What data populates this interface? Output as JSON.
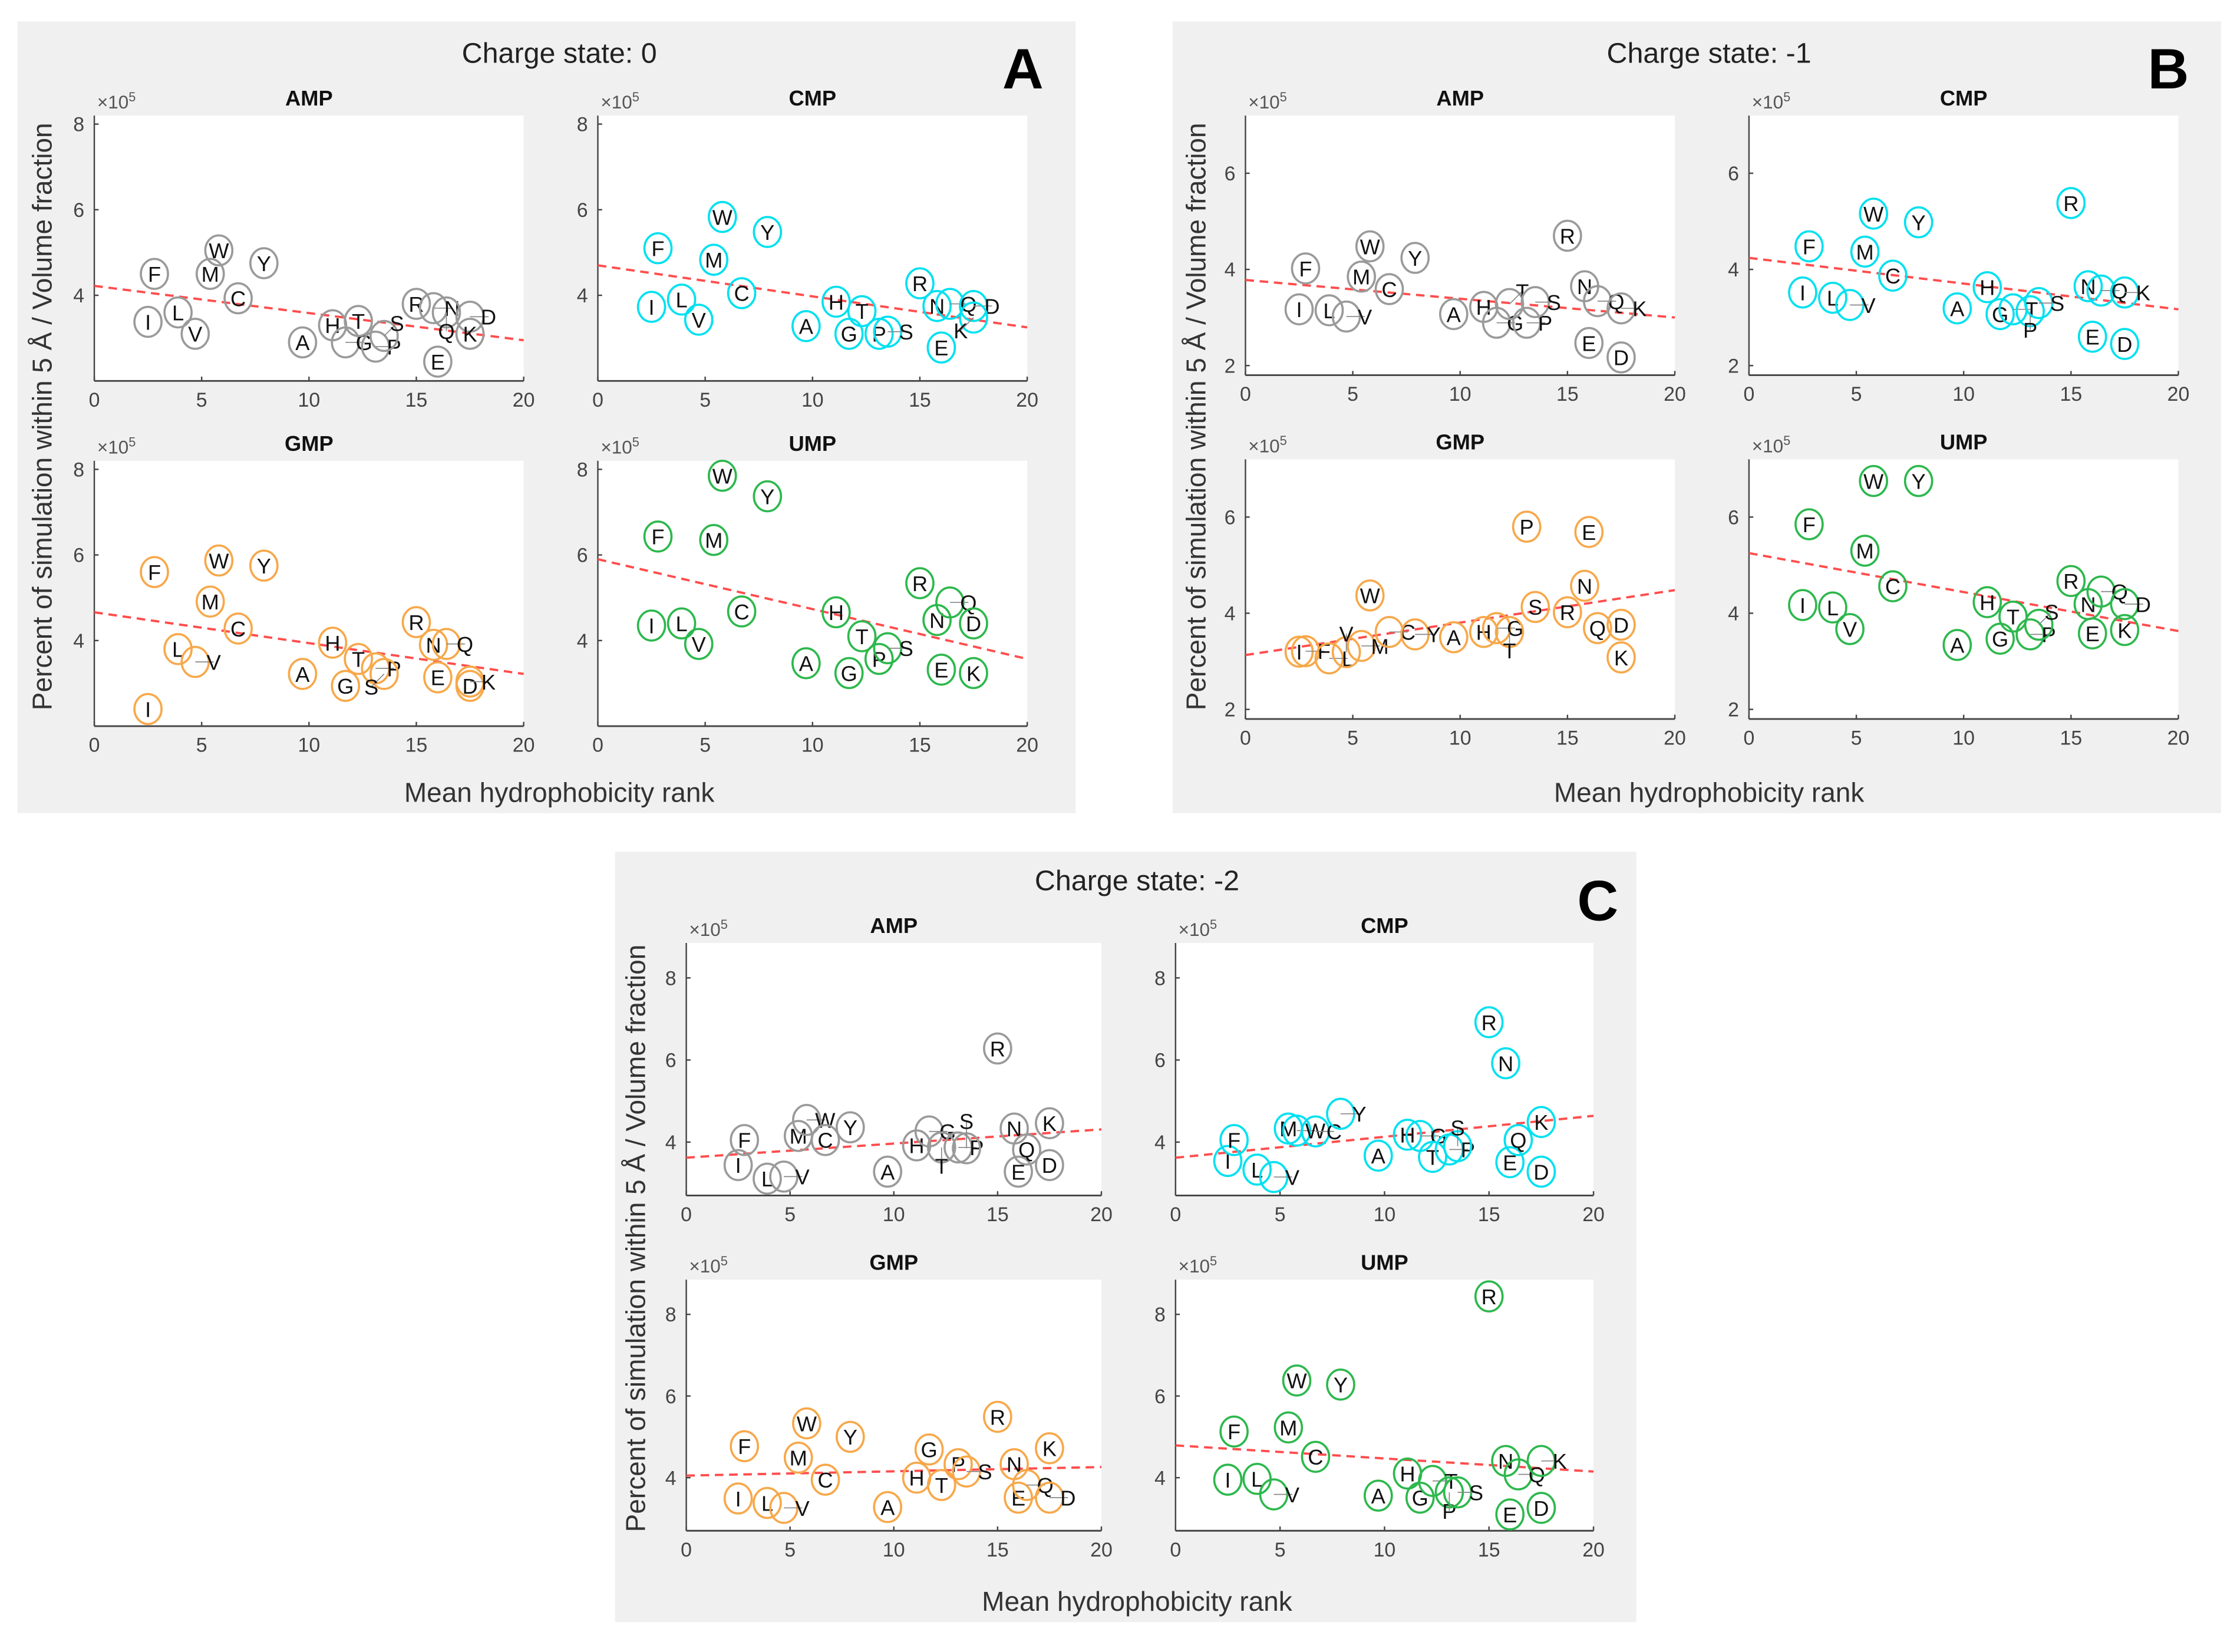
{
  "colors": {
    "AMP": "#9a9a9a",
    "CMP": "#00e0f0",
    "GMP": "#f7a84a",
    "UMP": "#2db84d",
    "trend": "#ff4d4d",
    "panel_bg": "#f0f0f0"
  },
  "panels": [
    {
      "letter": "A",
      "title": "Charge state: 0",
      "ylabel": "Percent of simulation within 5 Å / Volume fraction",
      "xlabel": "Mean hydrophobicity rank"
    },
    {
      "letter": "B",
      "title": "Charge state: -1",
      "ylabel": "Percent of simulation within 5 Å / Volume fraction",
      "xlabel": "Mean hydrophobicity rank"
    },
    {
      "letter": "C",
      "title": "Charge state: -2",
      "ylabel": "Percent of simulation within 5 Å / Volume fraction",
      "xlabel": "Mean hydrophobicity rank"
    }
  ],
  "amino_acids": [
    "I",
    "F",
    "L",
    "V",
    "M",
    "W",
    "C",
    "Y",
    "A",
    "H",
    "G",
    "T",
    "P",
    "S",
    "R",
    "N",
    "E",
    "Q",
    "D",
    "K"
  ],
  "hydrophobicity_rank": [
    2.5,
    2.8,
    3.9,
    4.7,
    5.4,
    5.8,
    6.7,
    7.9,
    9.7,
    11.1,
    11.7,
    12.3,
    13.1,
    13.5,
    15.0,
    15.8,
    16.0,
    16.4,
    17.5,
    17.5
  ],
  "chart_data": [
    {
      "type": "scatter",
      "panel": "A",
      "title": "AMP",
      "y_multiplier": "×10",
      "y_exponent": "5",
      "xlim": [
        0,
        20
      ],
      "ylim": [
        2,
        8.2
      ],
      "xticks": [
        "0",
        "5",
        "10",
        "15",
        "20"
      ],
      "yticks": [
        "4",
        "6",
        "8"
      ],
      "ytick_values": [
        4,
        6,
        8
      ],
      "y": [
        3.38,
        4.5,
        3.6,
        3.1,
        4.5,
        5.05,
        3.93,
        4.75,
        2.9,
        3.3,
        2.9,
        3.4,
        2.8,
        3.05,
        3.8,
        3.7,
        2.45,
        3.6,
        3.5,
        3.1
      ],
      "trend": {
        "x": [
          0,
          20
        ],
        "y": [
          4.22,
          2.95
        ]
      }
    },
    {
      "type": "scatter",
      "panel": "A",
      "title": "CMP",
      "y_multiplier": "×10",
      "y_exponent": "5",
      "xlim": [
        0,
        20
      ],
      "ylim": [
        2,
        8.2
      ],
      "xticks": [
        "0",
        "5",
        "10",
        "15",
        "20"
      ],
      "yticks": [
        "4",
        "6",
        "8"
      ],
      "ytick_values": [
        4,
        6,
        8
      ],
      "y": [
        3.73,
        5.1,
        3.9,
        3.43,
        4.83,
        5.83,
        4.05,
        5.48,
        3.28,
        3.85,
        3.1,
        3.63,
        3.1,
        3.15,
        4.28,
        3.75,
        2.78,
        3.8,
        3.75,
        3.48
      ],
      "trend": {
        "x": [
          0,
          20
        ],
        "y": [
          4.7,
          3.25
        ]
      }
    },
    {
      "type": "scatter",
      "panel": "A",
      "title": "GMP",
      "y_multiplier": "×10",
      "y_exponent": "5",
      "xlim": [
        0,
        20
      ],
      "ylim": [
        2,
        8.2
      ],
      "xticks": [
        "0",
        "5",
        "10",
        "15",
        "20"
      ],
      "yticks": [
        "4",
        "6",
        "8"
      ],
      "ytick_values": [
        4,
        6,
        8
      ],
      "y": [
        2.4,
        5.6,
        3.8,
        3.5,
        4.91,
        5.87,
        4.28,
        5.75,
        3.22,
        3.95,
        2.94,
        3.57,
        3.35,
        3.22,
        4.43,
        3.9,
        3.14,
        3.92,
        2.94,
        3.04
      ],
      "trend": {
        "x": [
          0,
          20
        ],
        "y": [
          4.66,
          3.22
        ]
      }
    },
    {
      "type": "scatter",
      "panel": "A",
      "title": "UMP",
      "y_multiplier": "×10",
      "y_exponent": "5",
      "xlim": [
        0,
        20
      ],
      "ylim": [
        2,
        8.2
      ],
      "xticks": [
        "0",
        "5",
        "10",
        "15",
        "20"
      ],
      "yticks": [
        "4",
        "6",
        "8"
      ],
      "ytick_values": [
        4,
        6,
        8
      ],
      "y": [
        4.35,
        6.43,
        4.4,
        3.92,
        6.35,
        7.85,
        4.68,
        7.37,
        3.47,
        4.66,
        3.24,
        4.1,
        3.57,
        3.82,
        5.34,
        4.48,
        3.32,
        4.89,
        4.4,
        3.24
      ],
      "trend": {
        "x": [
          0,
          20
        ],
        "y": [
          5.9,
          3.57
        ]
      }
    },
    {
      "type": "scatter",
      "panel": "B",
      "title": "AMP",
      "y_multiplier": "×10",
      "y_exponent": "5",
      "xlim": [
        0,
        20
      ],
      "ylim": [
        1.8,
        7.2
      ],
      "xticks": [
        "0",
        "5",
        "10",
        "15",
        "20"
      ],
      "yticks": [
        "2",
        "4",
        "6"
      ],
      "ytick_values": [
        2,
        4,
        6
      ],
      "y": [
        3.17,
        4.02,
        3.15,
        3.02,
        3.85,
        4.48,
        3.59,
        4.24,
        3.07,
        3.22,
        2.89,
        3.28,
        2.89,
        3.32,
        4.7,
        3.65,
        2.47,
        3.34,
        2.17,
        3.19
      ],
      "trend": {
        "x": [
          0,
          20
        ],
        "y": [
          3.78,
          3.0
        ]
      }
    },
    {
      "type": "scatter",
      "panel": "B",
      "title": "CMP",
      "y_multiplier": "×10",
      "y_exponent": "5",
      "xlim": [
        0,
        20
      ],
      "ylim": [
        1.8,
        7.2
      ],
      "xticks": [
        "0",
        "5",
        "10",
        "15",
        "20"
      ],
      "yticks": [
        "2",
        "4",
        "6"
      ],
      "ytick_values": [
        2,
        4,
        6
      ],
      "y": [
        3.52,
        4.48,
        3.41,
        3.26,
        4.37,
        5.16,
        3.87,
        4.98,
        3.19,
        3.63,
        3.07,
        3.17,
        3.13,
        3.3,
        5.38,
        3.65,
        2.6,
        3.56,
        2.45,
        3.52
      ],
      "trend": {
        "x": [
          0,
          20
        ],
        "y": [
          4.24,
          3.17
        ]
      }
    },
    {
      "type": "scatter",
      "panel": "B",
      "title": "GMP",
      "y_multiplier": "×10",
      "y_exponent": "5",
      "xlim": [
        0,
        20
      ],
      "ylim": [
        1.8,
        7.2
      ],
      "xticks": [
        "0",
        "5",
        "10",
        "15",
        "20"
      ],
      "yticks": [
        "2",
        "4",
        "6"
      ],
      "ytick_values": [
        2,
        4,
        6
      ],
      "y": [
        3.2,
        3.21,
        3.06,
        3.19,
        3.32,
        4.37,
        3.61,
        3.56,
        3.5,
        3.61,
        3.69,
        3.61,
        5.8,
        4.13,
        4.02,
        4.57,
        5.69,
        3.69,
        3.76,
        3.08
      ],
      "trend": {
        "x": [
          0,
          20
        ],
        "y": [
          3.13,
          4.48
        ]
      }
    },
    {
      "type": "scatter",
      "panel": "B",
      "title": "UMP",
      "y_multiplier": "×10",
      "y_exponent": "5",
      "xlim": [
        0,
        20
      ],
      "ylim": [
        1.8,
        7.2
      ],
      "xticks": [
        "0",
        "5",
        "10",
        "15",
        "20"
      ],
      "yticks": [
        "2",
        "4",
        "6"
      ],
      "ytick_values": [
        2,
        4,
        6
      ],
      "y": [
        4.17,
        5.85,
        4.12,
        3.67,
        5.3,
        6.75,
        4.56,
        6.75,
        3.34,
        4.23,
        3.47,
        3.93,
        3.56,
        3.76,
        4.67,
        4.19,
        3.58,
        4.45,
        4.19,
        3.65
      ],
      "trend": {
        "x": [
          0,
          20
        ],
        "y": [
          5.25,
          3.63
        ]
      }
    },
    {
      "type": "scatter",
      "panel": "C",
      "title": "AMP",
      "y_multiplier": "×10",
      "y_exponent": "5",
      "xlim": [
        0,
        20
      ],
      "ylim": [
        2.7,
        8.85
      ],
      "xticks": [
        "0",
        "5",
        "10",
        "15",
        "20"
      ],
      "yticks": [
        "4",
        "6",
        "8"
      ],
      "ytick_values": [
        4,
        6,
        8
      ],
      "y": [
        3.44,
        4.05,
        3.11,
        3.16,
        4.15,
        4.54,
        4.05,
        4.36,
        3.28,
        3.92,
        4.26,
        3.87,
        3.87,
        3.85,
        6.28,
        4.33,
        3.28,
        3.82,
        3.44,
        4.46
      ],
      "trend": {
        "x": [
          0,
          20
        ],
        "y": [
          3.62,
          4.31
        ]
      }
    },
    {
      "type": "scatter",
      "panel": "C",
      "title": "CMP",
      "y_multiplier": "×10",
      "y_exponent": "5",
      "xlim": [
        0,
        20
      ],
      "ylim": [
        2.7,
        8.85
      ],
      "xticks": [
        "0",
        "5",
        "10",
        "15",
        "20"
      ],
      "yticks": [
        "4",
        "6",
        "8"
      ],
      "ytick_values": [
        4,
        6,
        8
      ],
      "y": [
        3.54,
        4.05,
        3.33,
        3.15,
        4.33,
        4.28,
        4.26,
        4.69,
        3.67,
        4.18,
        4.15,
        3.64,
        3.82,
        3.9,
        6.92,
        5.92,
        3.51,
        4.05,
        3.28,
        4.49
      ],
      "trend": {
        "x": [
          0,
          20
        ],
        "y": [
          3.62,
          4.64
        ]
      }
    },
    {
      "type": "scatter",
      "panel": "C",
      "title": "GMP",
      "y_multiplier": "×10",
      "y_exponent": "5",
      "xlim": [
        0,
        20
      ],
      "ylim": [
        2.7,
        8.85
      ],
      "xticks": [
        "0",
        "5",
        "10",
        "15",
        "20"
      ],
      "yticks": [
        "4",
        "6",
        "8"
      ],
      "ytick_values": [
        4,
        6,
        8
      ],
      "y": [
        3.49,
        4.77,
        3.38,
        3.26,
        4.49,
        5.33,
        3.95,
        5.0,
        3.28,
        4.0,
        4.69,
        3.82,
        4.33,
        4.15,
        5.49,
        4.33,
        3.51,
        3.82,
        3.51,
        4.72
      ],
      "trend": {
        "x": [
          0,
          20
        ],
        "y": [
          4.05,
          4.26
        ]
      }
    },
    {
      "type": "scatter",
      "panel": "C",
      "title": "UMP",
      "y_multiplier": "×10",
      "y_exponent": "5",
      "xlim": [
        0,
        20
      ],
      "ylim": [
        2.7,
        8.85
      ],
      "xticks": [
        "0",
        "5",
        "10",
        "15",
        "20"
      ],
      "yticks": [
        "4",
        "6",
        "8"
      ],
      "ytick_values": [
        4,
        6,
        8
      ],
      "y": [
        3.95,
        5.13,
        3.97,
        3.59,
        5.23,
        6.38,
        4.51,
        6.28,
        3.56,
        4.1,
        3.51,
        3.92,
        3.64,
        3.64,
        8.44,
        4.41,
        3.1,
        4.08,
        3.26,
        4.41
      ],
      "trend": {
        "x": [
          0,
          20
        ],
        "y": [
          4.79,
          4.15
        ]
      }
    }
  ]
}
